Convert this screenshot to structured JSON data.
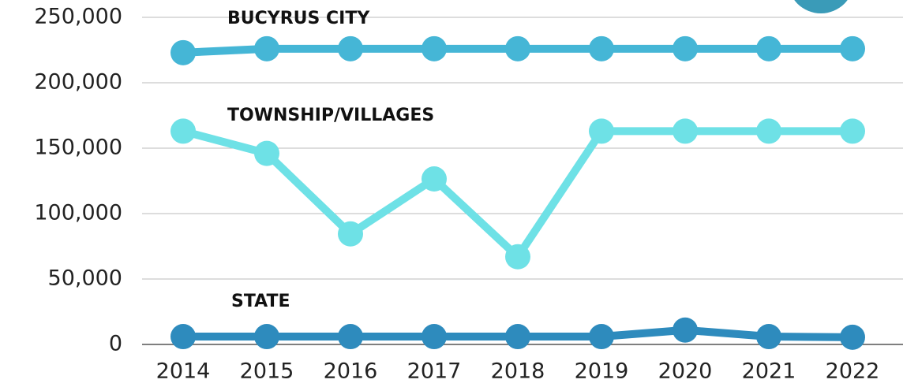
{
  "chart_data": {
    "type": "line",
    "categories": [
      "2014",
      "2015",
      "2016",
      "2017",
      "2018",
      "2019",
      "2020",
      "2021",
      "2022"
    ],
    "series": [
      {
        "name": "BUCYRUS CITY",
        "color": "#45b6d6",
        "values": [
          223000,
          226000,
          226000,
          226000,
          226000,
          226000,
          226000,
          226000,
          226000
        ]
      },
      {
        "name": "TOWNSHIP/VILLAGES",
        "color": "#6ee1e6",
        "values": [
          163000,
          146000,
          84500,
          126500,
          67000,
          163000,
          163000,
          163000,
          163000
        ]
      },
      {
        "name": "STATE",
        "color": "#2e8bbd",
        "values": [
          6000,
          6000,
          6000,
          6000,
          6000,
          6000,
          11000,
          6000,
          5500
        ]
      }
    ],
    "ylim": [
      0,
      250000
    ],
    "yticks": [
      0,
      {
        "value": 50000,
        "label": "50,000"
      },
      {
        "value": 100000,
        "label": "100,000"
      },
      {
        "value": 150000,
        "label": "150,000"
      },
      {
        "value": 200000,
        "label": "200,000"
      },
      {
        "value": 250000,
        "label": "250,000"
      }
    ],
    "grid": true
  }
}
